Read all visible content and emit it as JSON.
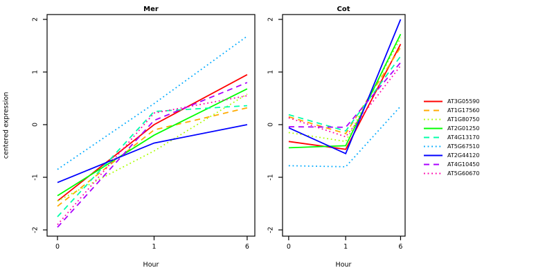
{
  "chart_data": {
    "type": "line",
    "x": [
      0,
      1,
      6
    ],
    "x_tick_labels": [
      "0",
      "1",
      "6"
    ],
    "y_ticks": [
      -2,
      -1,
      0,
      1,
      2
    ],
    "ylim": [
      -2.1,
      2.1
    ],
    "xlabel": "Hour",
    "ylabel": "centered expression",
    "grid": "off",
    "legend_position": "right",
    "panels": [
      {
        "title": "Mer"
      },
      {
        "title": "Cot"
      }
    ],
    "series": [
      {
        "name": "AT3G05590",
        "color": "#FF0000",
        "linestyle": "solid",
        "Mer": [
          -1.45,
          0.0,
          0.95
        ],
        "Cot": [
          -0.32,
          -0.47,
          1.53
        ]
      },
      {
        "name": "AT1G17560",
        "color": "#FFAA00",
        "linestyle": "dashed",
        "Mer": [
          -1.55,
          -0.1,
          0.32
        ],
        "Cot": [
          0.15,
          -0.17,
          1.47
        ]
      },
      {
        "name": "AT1G80750",
        "color": "#AAFF00",
        "linestyle": "dotted",
        "Mer": [
          -1.45,
          -0.5,
          0.58
        ],
        "Cot": [
          -0.15,
          -0.32,
          1.65
        ]
      },
      {
        "name": "AT2G01250",
        "color": "#00FF00",
        "linestyle": "solid",
        "Mer": [
          -1.35,
          -0.2,
          0.68
        ],
        "Cot": [
          -0.44,
          -0.4,
          1.72
        ]
      },
      {
        "name": "AT4G13170",
        "color": "#00FFAA",
        "linestyle": "dashed",
        "Mer": [
          -1.75,
          0.25,
          0.36
        ],
        "Cot": [
          0.19,
          -0.12,
          1.3
        ]
      },
      {
        "name": "AT5G67510",
        "color": "#00AAFF",
        "linestyle": "dotted",
        "Mer": [
          -0.85,
          0.4,
          1.68
        ],
        "Cot": [
          -0.78,
          -0.8,
          0.35
        ]
      },
      {
        "name": "AT2G44120",
        "color": "#0000FF",
        "linestyle": "solid",
        "Mer": [
          -1.1,
          -0.35,
          0.0
        ],
        "Cot": [
          -0.06,
          -0.55,
          2.0
        ]
      },
      {
        "name": "AT4G10450",
        "color": "#AA00FF",
        "linestyle": "dashed",
        "Mer": [
          -1.95,
          0.08,
          0.8
        ],
        "Cot": [
          -0.04,
          -0.05,
          1.18
        ]
      },
      {
        "name": "AT5G60670",
        "color": "#FF00AA",
        "linestyle": "dotted",
        "Mer": [
          -1.9,
          0.22,
          0.55
        ],
        "Cot": [
          0.13,
          -0.23,
          1.12
        ]
      }
    ]
  }
}
